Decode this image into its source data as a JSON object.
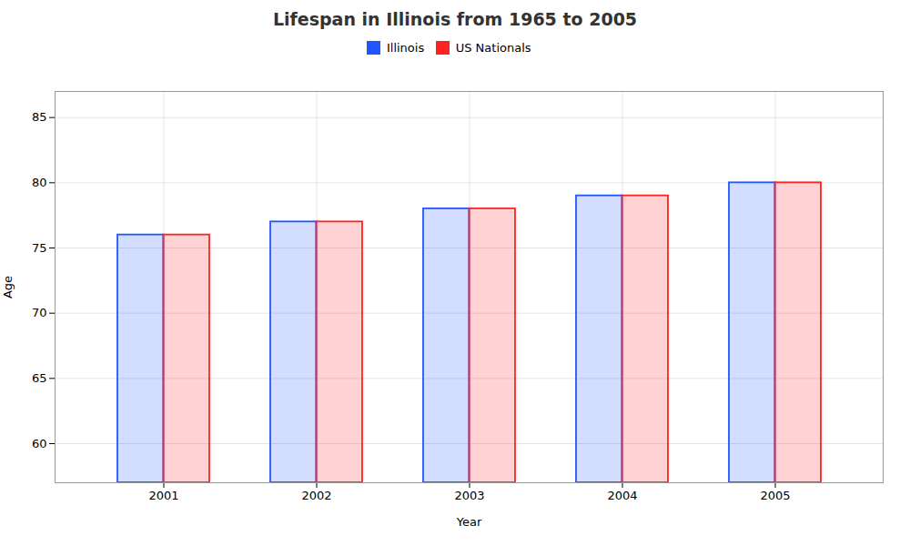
{
  "chart_data": {
    "type": "bar",
    "title": "Lifespan in Illinois from 1965 to 2005",
    "xlabel": "Year",
    "ylabel": "Age",
    "categories": [
      "2001",
      "2002",
      "2003",
      "2004",
      "2005"
    ],
    "series": [
      {
        "name": "Illinois",
        "color": "#2255ff",
        "values": [
          76,
          77,
          78,
          79,
          80
        ]
      },
      {
        "name": "US Nationals",
        "color": "#ff2222",
        "values": [
          76,
          77,
          78,
          79,
          80
        ]
      }
    ],
    "ylim": [
      57,
      87
    ],
    "yticks": [
      60,
      65,
      70,
      75,
      80,
      85
    ],
    "grid": true,
    "legend": "top"
  }
}
